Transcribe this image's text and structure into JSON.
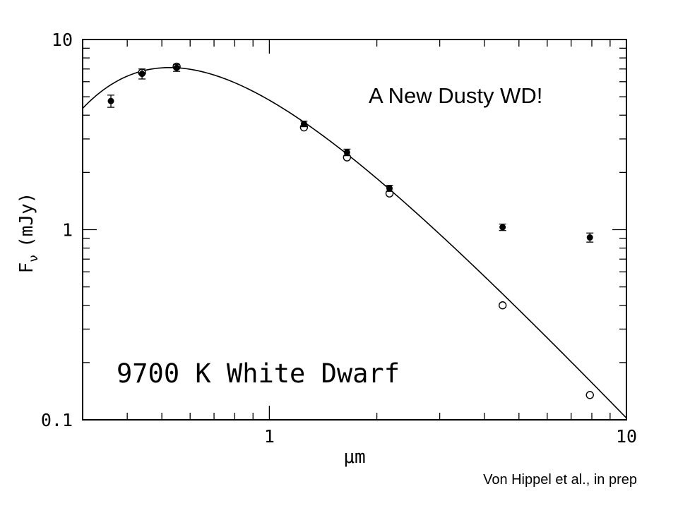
{
  "chart_data": {
    "type": "scatter",
    "xlabel": "μm",
    "ylabel_main": "F",
    "ylabel_sub": "ν",
    "ylabel_unit": "(mJy)",
    "xscale": "log",
    "yscale": "log",
    "xlim": [
      0.3,
      10
    ],
    "ylim": [
      0.1,
      10
    ],
    "x_tick_labels": [
      {
        "value": 1,
        "label": "1"
      },
      {
        "value": 10,
        "label": "10"
      }
    ],
    "y_tick_labels": [
      {
        "value": 0.1,
        "label": "0.1"
      },
      {
        "value": 1,
        "label": "1"
      },
      {
        "value": 10,
        "label": "10"
      }
    ],
    "series": [
      {
        "marker": "filled-circle-errorbar",
        "x": [
          0.36,
          0.44,
          0.55,
          1.25,
          1.65,
          2.17,
          4.5,
          7.9
        ],
        "y": [
          4.75,
          6.6,
          7.1,
          3.6,
          2.55,
          1.65,
          1.03,
          0.91
        ],
        "yerr": [
          0.35,
          0.4,
          0.3,
          0.12,
          0.1,
          0.06,
          0.04,
          0.05
        ]
      },
      {
        "marker": "open-circle",
        "x": [
          0.44,
          0.55,
          1.25,
          1.65,
          2.17,
          4.5,
          7.9
        ],
        "y": [
          6.7,
          7.2,
          3.45,
          2.4,
          1.55,
          0.4,
          0.135
        ]
      }
    ],
    "model_curve": {
      "style": "solid-line",
      "temperature_K": 9700
    },
    "annotations": [
      {
        "text": "A New Dusty WD!"
      },
      {
        "text": "9700 K White Dwarf"
      }
    ],
    "credit": "Von Hippel et al., in prep"
  }
}
